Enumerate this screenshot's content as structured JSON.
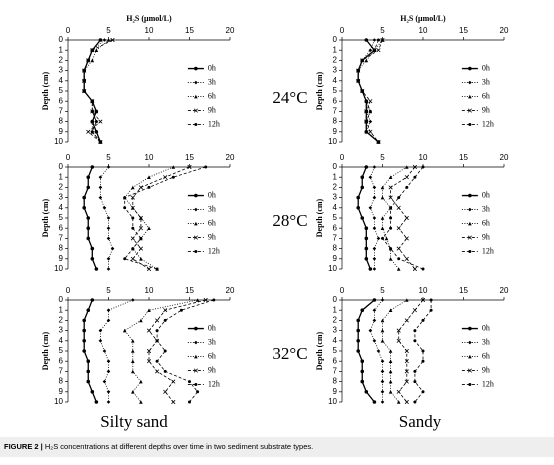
{
  "chart_data": [
    {
      "type": "line",
      "xlabel": "H₂S (μmol/L)",
      "ylabel": "Depth (cm)",
      "categories": [
        0,
        1,
        2,
        3,
        4,
        5,
        6,
        7,
        8,
        9,
        10
      ],
      "xlim": [
        0,
        20
      ],
      "xticks": [
        0,
        5,
        10,
        15,
        20
      ],
      "legend": "right",
      "color": "#000000",
      "series": [
        {
          "name": "0h",
          "values": [
            4,
            3,
            2.5,
            2,
            2,
            2,
            3,
            3.5,
            3,
            3.5,
            4
          ]
        },
        {
          "name": "3h",
          "values": [
            4.5,
            3,
            2.5,
            2,
            2,
            2,
            3,
            3,
            3.5,
            3,
            4
          ]
        },
        {
          "name": "6h",
          "values": [
            5,
            3.5,
            3,
            2,
            2,
            2,
            3,
            3.5,
            3,
            3,
            4
          ]
        },
        {
          "name": "9h",
          "values": [
            5.5,
            3,
            2.5,
            2,
            2,
            2,
            3,
            3,
            4,
            2.5,
            4
          ]
        },
        {
          "name": "12h",
          "values": [
            4,
            3,
            2.5,
            2,
            2,
            2,
            3,
            3,
            3.5,
            3,
            4
          ]
        }
      ]
    },
    {
      "type": "line",
      "xlabel": "H₂S (μmol/L)",
      "ylabel": "Depth (cm)",
      "categories": [
        0,
        1,
        2,
        3,
        4,
        5,
        6,
        7,
        8,
        9,
        10
      ],
      "xlim": [
        0,
        20
      ],
      "xticks": [
        0,
        5,
        10,
        15,
        20
      ],
      "legend": "right",
      "color": "#000000",
      "series": [
        {
          "name": "0h",
          "values": [
            3,
            4,
            2.5,
            2,
            2,
            2.5,
            3,
            3,
            3,
            3,
            4.5
          ]
        },
        {
          "name": "3h",
          "values": [
            4,
            3.5,
            2.5,
            2,
            2,
            2.5,
            3,
            3,
            3.5,
            3,
            4.5
          ]
        },
        {
          "name": "6h",
          "values": [
            5,
            4,
            3,
            2,
            2,
            2.5,
            3,
            3.5,
            3,
            3,
            4.5
          ]
        },
        {
          "name": "9h",
          "values": [
            5,
            4.5,
            2.5,
            2,
            2,
            2.5,
            3.5,
            3,
            3,
            3.5,
            4.5
          ]
        },
        {
          "name": "12h",
          "values": [
            4.5,
            4,
            2.5,
            2,
            2,
            2.5,
            3,
            3.5,
            3,
            3,
            4.5
          ]
        }
      ]
    },
    {
      "type": "line",
      "ylabel": "Depth (cm)",
      "categories": [
        0,
        1,
        2,
        3,
        4,
        5,
        6,
        7,
        8,
        9,
        10
      ],
      "xlim": [
        0,
        20
      ],
      "xticks": [
        0,
        5,
        10,
        15,
        20
      ],
      "legend": "right",
      "color": "#000000",
      "series": [
        {
          "name": "0h",
          "values": [
            3,
            2.5,
            2.5,
            2,
            2,
            2.5,
            2.5,
            2.5,
            3,
            3,
            3.5
          ]
        },
        {
          "name": "3h",
          "values": [
            5,
            4,
            4,
            4,
            4.5,
            5,
            5,
            5,
            5.5,
            5,
            5
          ]
        },
        {
          "name": "6h",
          "values": [
            13,
            10,
            8,
            7,
            8,
            9,
            10,
            9,
            8,
            9,
            11
          ]
        },
        {
          "name": "9h",
          "values": [
            15,
            12,
            9,
            8,
            8,
            9,
            9,
            8,
            9,
            8,
            10
          ]
        },
        {
          "name": "12h",
          "values": [
            17,
            13,
            10,
            7,
            7,
            8,
            8,
            9,
            8,
            7,
            11
          ]
        }
      ]
    },
    {
      "type": "line",
      "ylabel": "Depth (cm)",
      "categories": [
        0,
        1,
        2,
        3,
        4,
        5,
        6,
        7,
        8,
        9,
        10
      ],
      "xlim": [
        0,
        20
      ],
      "xticks": [
        0,
        5,
        10,
        15,
        20
      ],
      "legend": "right",
      "color": "#000000",
      "series": [
        {
          "name": "0h",
          "values": [
            3,
            2.5,
            2.5,
            2,
            2,
            2.5,
            3,
            3,
            3,
            3,
            3.5
          ]
        },
        {
          "name": "3h",
          "values": [
            4,
            3.5,
            4,
            4,
            3.5,
            4,
            4,
            4.5,
            4,
            4,
            4
          ]
        },
        {
          "name": "6h",
          "values": [
            8,
            6,
            5,
            5,
            6,
            5,
            5,
            5.5,
            6,
            6,
            7
          ]
        },
        {
          "name": "9h",
          "values": [
            9,
            8,
            6,
            6,
            7,
            8,
            7,
            8,
            7,
            8,
            9
          ]
        },
        {
          "name": "12h",
          "values": [
            10,
            9,
            8,
            7,
            6,
            6,
            6,
            5,
            6,
            7,
            10
          ]
        }
      ]
    },
    {
      "type": "line",
      "ylabel": "Depth (cm)",
      "categories": [
        0,
        1,
        2,
        3,
        4,
        5,
        6,
        7,
        8,
        9,
        10
      ],
      "xlim": [
        0,
        20
      ],
      "xticks": [
        0,
        5,
        10,
        15,
        20
      ],
      "legend": "right",
      "color": "#000000",
      "series": [
        {
          "name": "0h",
          "values": [
            3,
            2.5,
            2,
            2,
            2,
            2,
            2.5,
            2.5,
            2.5,
            3,
            3.5
          ]
        },
        {
          "name": "3h",
          "values": [
            8,
            5,
            5,
            4,
            4,
            4.5,
            5,
            5,
            4.5,
            5,
            5
          ]
        },
        {
          "name": "6h",
          "values": [
            16,
            10,
            9,
            7,
            8,
            8,
            8,
            8,
            9,
            8,
            9
          ]
        },
        {
          "name": "9h",
          "values": [
            17,
            12,
            11,
            10,
            11,
            10,
            10,
            11,
            13,
            12,
            13
          ]
        },
        {
          "name": "12h",
          "values": [
            18,
            14,
            12,
            11,
            11,
            12,
            11,
            12,
            15,
            16,
            15
          ]
        }
      ]
    },
    {
      "type": "line",
      "ylabel": "Depth (cm)",
      "categories": [
        0,
        1,
        2,
        3,
        4,
        5,
        6,
        7,
        8,
        9,
        10
      ],
      "xlim": [
        0,
        20
      ],
      "xticks": [
        0,
        5,
        10,
        15,
        20
      ],
      "legend": "right",
      "color": "#000000",
      "series": [
        {
          "name": "0h",
          "values": [
            4,
            2.5,
            2,
            2,
            2,
            2,
            2.5,
            2.5,
            2.5,
            3,
            4
          ]
        },
        {
          "name": "3h",
          "values": [
            5,
            4,
            4,
            3.5,
            4,
            4.5,
            5,
            5,
            5,
            5,
            5
          ]
        },
        {
          "name": "6h",
          "values": [
            8,
            6,
            5,
            5,
            5,
            6,
            6,
            6,
            6,
            6,
            7
          ]
        },
        {
          "name": "9h",
          "values": [
            10,
            9,
            8,
            7,
            7,
            8,
            8,
            8,
            8,
            7,
            8
          ]
        },
        {
          "name": "12h",
          "values": [
            11,
            11,
            10,
            9,
            9,
            10,
            10,
            9,
            9,
            10,
            9
          ]
        }
      ]
    }
  ],
  "row_labels": [
    "24°C",
    "28°C",
    "32°C"
  ],
  "column_labels": [
    "Silty sand",
    "Sandy"
  ],
  "caption": {
    "label": "FIGURE 2 |",
    "text": "H₂S concentrations at different depths over time in two sediment substrate types."
  }
}
